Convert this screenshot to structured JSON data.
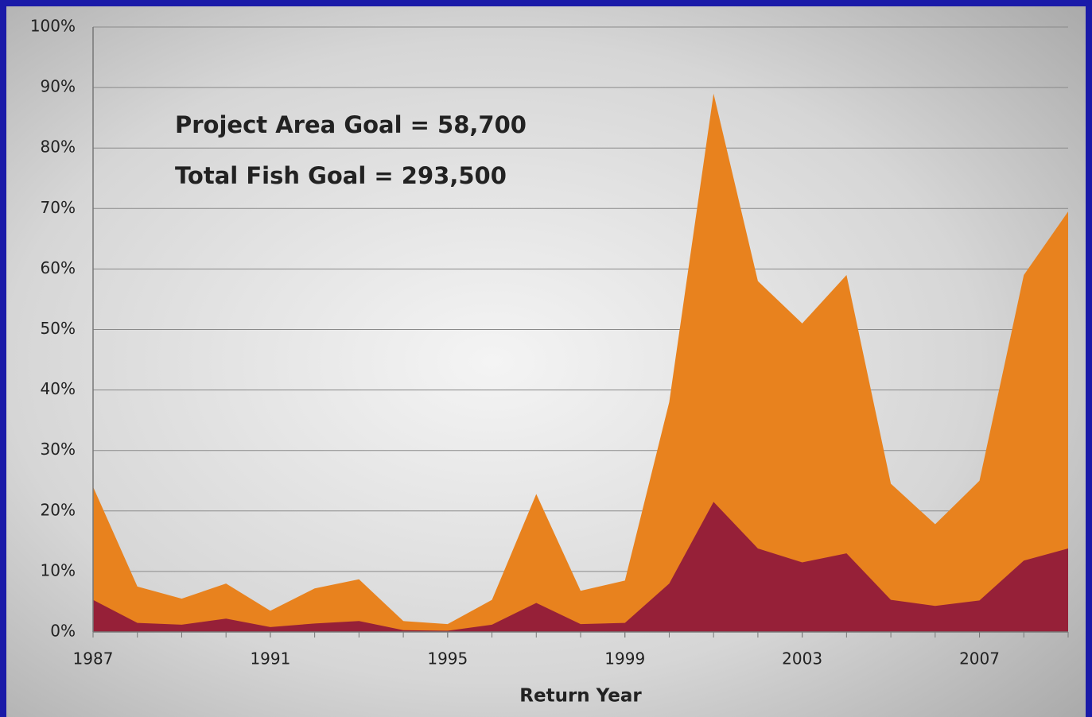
{
  "chart_data": {
    "type": "area",
    "x": [
      1987,
      1988,
      1989,
      1990,
      1991,
      1992,
      1993,
      1994,
      1995,
      1996,
      1997,
      1998,
      1999,
      2000,
      2001,
      2002,
      2003,
      2004,
      2005,
      2006,
      2007,
      2008,
      2009
    ],
    "series": [
      {
        "color": "#e8821e",
        "values": [
          24,
          7.5,
          5.5,
          8,
          3.5,
          7.2,
          8.7,
          1.8,
          1.3,
          5.3,
          22.8,
          6.8,
          8.5,
          38,
          89,
          58,
          51,
          59,
          24.5,
          17.8,
          25,
          59,
          69.5
        ]
      },
      {
        "color": "#962038",
        "values": [
          5.3,
          1.5,
          1.2,
          2.2,
          0.8,
          1.4,
          1.8,
          0.3,
          0.2,
          1.2,
          4.8,
          1.3,
          1.5,
          8,
          21.5,
          13.8,
          11.5,
          13,
          5.3,
          4.3,
          5.2,
          11.8,
          13.8
        ]
      }
    ],
    "annotations": [
      {
        "text": "Project Area Goal = 58,700",
        "color": "#c8782a"
      },
      {
        "text": "Total Fish Goal = 293,500",
        "color": "#962038"
      }
    ],
    "xlabel": "Return Year",
    "xlim": [
      1987,
      2009
    ],
    "xticks": [
      1987,
      1991,
      1995,
      1999,
      2003,
      2007
    ],
    "ylim": [
      0,
      100
    ],
    "yticks": [
      {
        "value": 0,
        "label": "0%"
      },
      {
        "value": 10,
        "label": "10%"
      },
      {
        "value": 20,
        "label": "20%"
      },
      {
        "value": 30,
        "label": "30%"
      },
      {
        "value": 40,
        "label": "40%"
      },
      {
        "value": 50,
        "label": "50%"
      },
      {
        "value": 60,
        "label": "60%"
      },
      {
        "value": 70,
        "label": "70%"
      },
      {
        "value": 80,
        "label": "80%"
      },
      {
        "value": 90,
        "label": "90%"
      },
      {
        "value": 100,
        "label": "100%"
      }
    ],
    "grid": true
  }
}
